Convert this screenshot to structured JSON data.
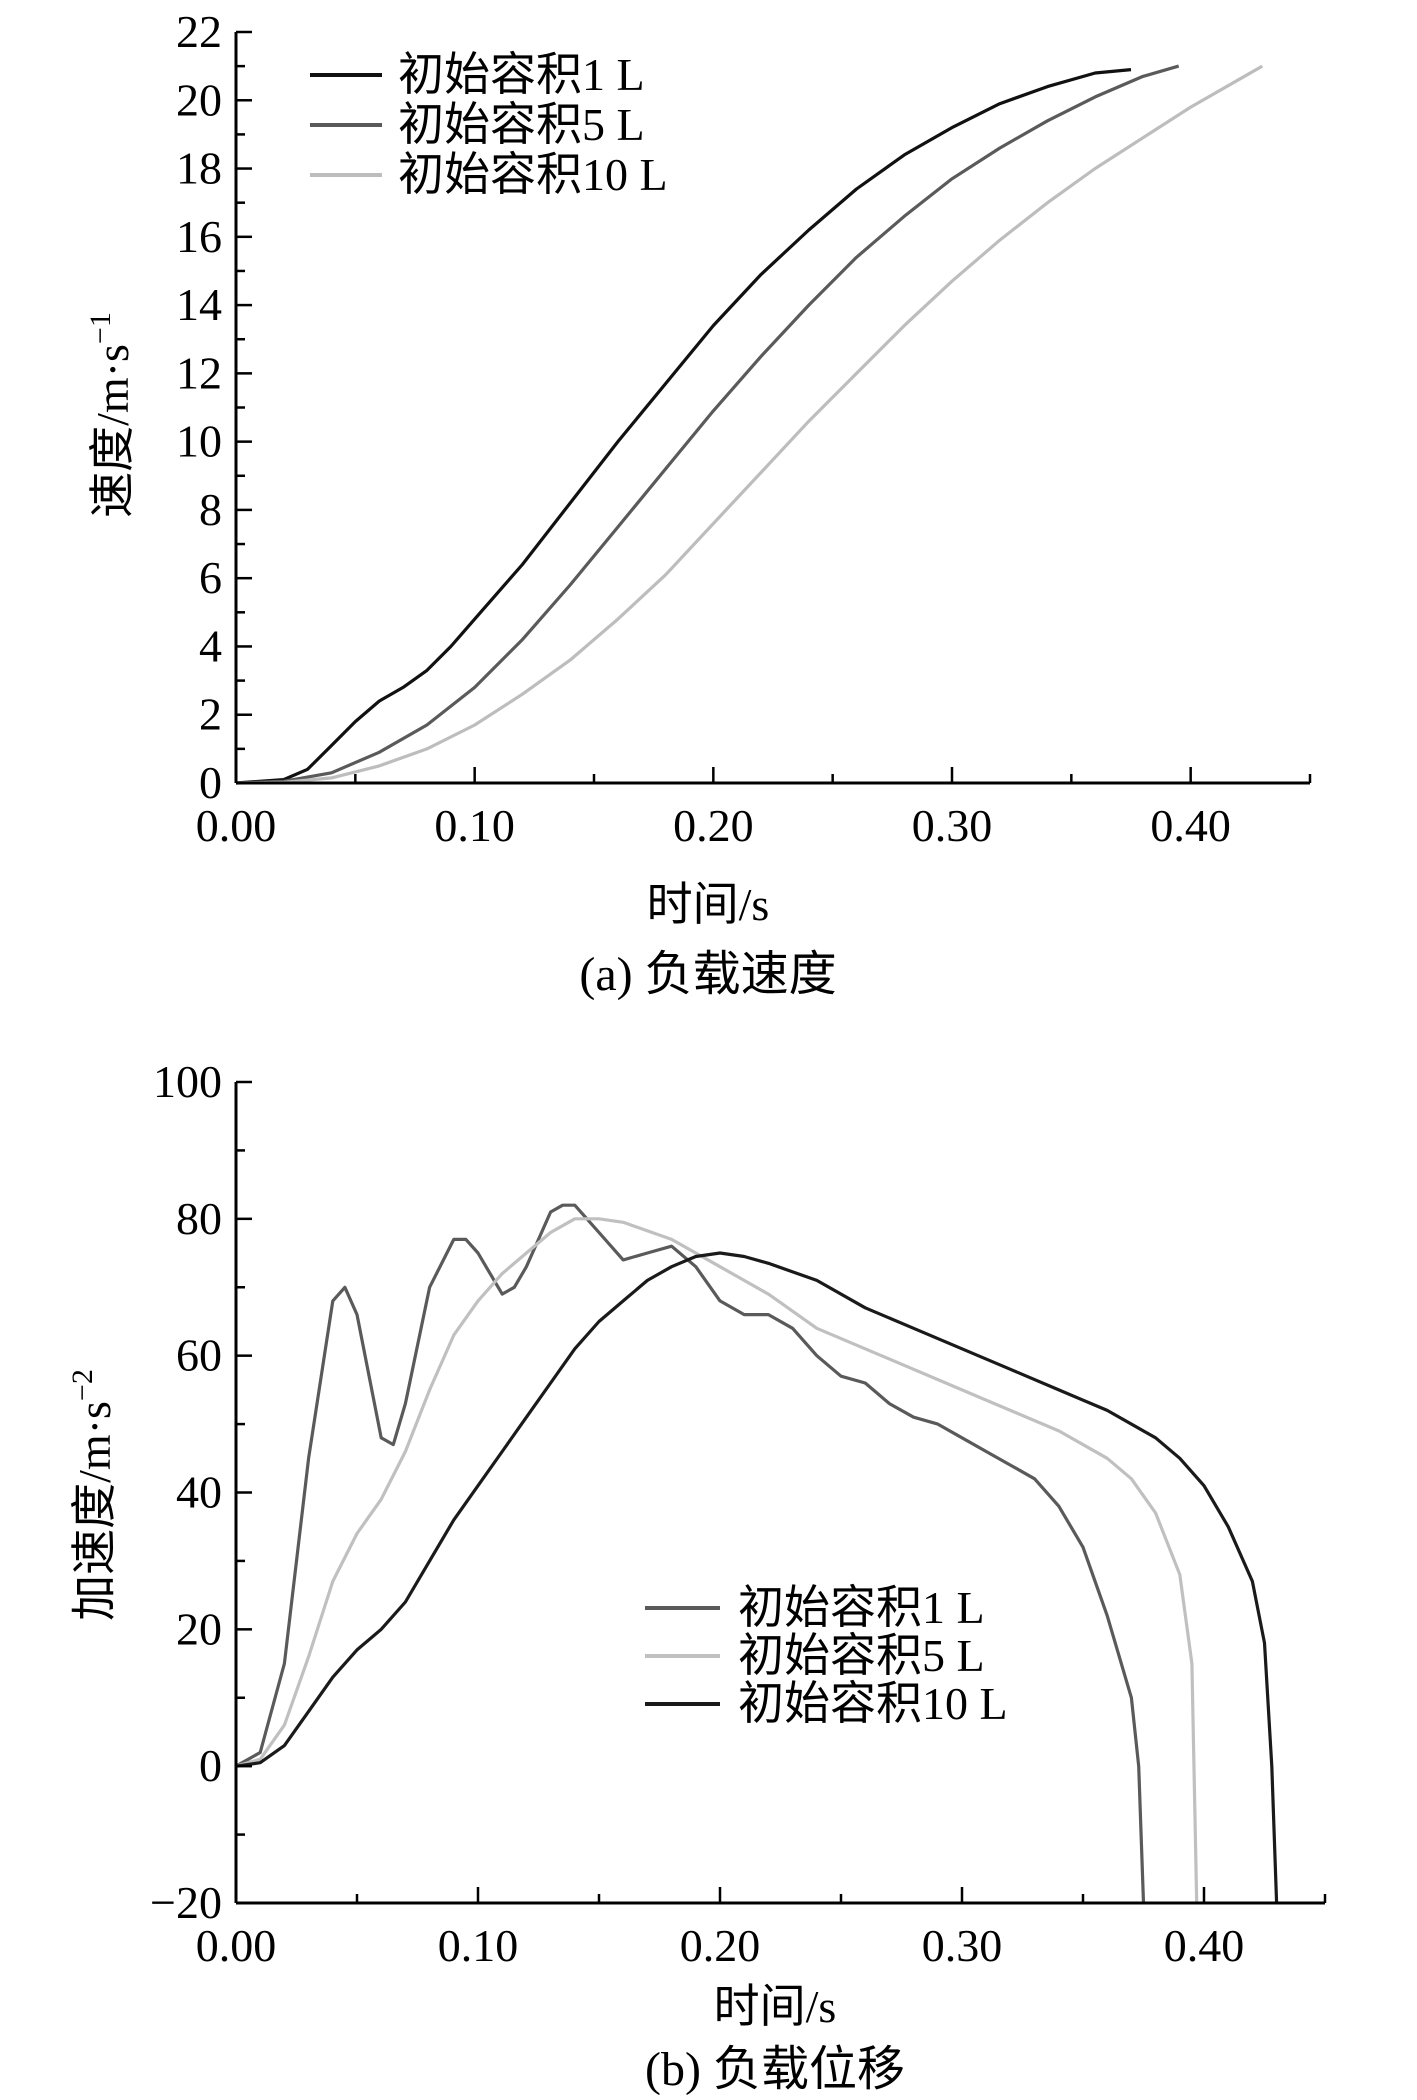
{
  "chart_data": [
    {
      "type": "line",
      "caption": "(a) 负载速度",
      "xlabel": "时间/s",
      "ylabel": "速度/m·s",
      "ylabel_sup": "−1",
      "xlim": [
        0,
        0.45
      ],
      "ylim": [
        0,
        22
      ],
      "xticks": [
        "0.00",
        "0.10",
        "0.20",
        "0.30",
        "0.40"
      ],
      "yticks": [
        "0",
        "2",
        "4",
        "6",
        "8",
        "10",
        "12",
        "14",
        "16",
        "18",
        "20",
        "22"
      ],
      "legend_position": "top-left",
      "series": [
        {
          "name": "初始容积1 L",
          "color": "#111111",
          "x": [
            0,
            0.02,
            0.03,
            0.04,
            0.05,
            0.06,
            0.07,
            0.08,
            0.09,
            0.1,
            0.12,
            0.14,
            0.16,
            0.18,
            0.2,
            0.22,
            0.24,
            0.26,
            0.28,
            0.3,
            0.32,
            0.34,
            0.36,
            0.375
          ],
          "y": [
            0,
            0.1,
            0.4,
            1.1,
            1.8,
            2.4,
            2.8,
            3.3,
            4.0,
            4.8,
            6.4,
            8.2,
            10.0,
            11.7,
            13.4,
            14.9,
            16.2,
            17.4,
            18.4,
            19.2,
            19.9,
            20.4,
            20.8,
            20.9
          ]
        },
        {
          "name": "初始容积5 L",
          "color": "#5a5a5a",
          "x": [
            0,
            0.02,
            0.04,
            0.06,
            0.08,
            0.1,
            0.12,
            0.14,
            0.16,
            0.18,
            0.2,
            0.22,
            0.24,
            0.26,
            0.28,
            0.3,
            0.32,
            0.34,
            0.36,
            0.38,
            0.395
          ],
          "y": [
            0,
            0.05,
            0.3,
            0.9,
            1.7,
            2.8,
            4.2,
            5.8,
            7.5,
            9.2,
            10.9,
            12.5,
            14.0,
            15.4,
            16.6,
            17.7,
            18.6,
            19.4,
            20.1,
            20.7,
            21.0
          ]
        },
        {
          "name": "初始容积10 L",
          "color": "#bdbdbd",
          "x": [
            0,
            0.02,
            0.04,
            0.06,
            0.08,
            0.1,
            0.12,
            0.14,
            0.16,
            0.18,
            0.2,
            0.22,
            0.24,
            0.26,
            0.28,
            0.3,
            0.32,
            0.34,
            0.36,
            0.38,
            0.4,
            0.42,
            0.43
          ],
          "y": [
            0,
            0.02,
            0.15,
            0.5,
            1.0,
            1.7,
            2.6,
            3.6,
            4.8,
            6.1,
            7.6,
            9.1,
            10.6,
            12.0,
            13.4,
            14.7,
            15.9,
            17.0,
            18.0,
            18.9,
            19.8,
            20.6,
            21.0
          ]
        }
      ]
    },
    {
      "type": "line",
      "caption": "(b) 负载位移",
      "xlabel": "时间/s",
      "ylabel": "加速度/m·s",
      "ylabel_sup": "−2",
      "xlim": [
        0,
        0.45
      ],
      "ylim": [
        -20,
        100
      ],
      "xticks": [
        "0.00",
        "0.10",
        "0.20",
        "0.30",
        "0.40"
      ],
      "yticks": [
        "−20",
        "0",
        "20",
        "40",
        "60",
        "80",
        "100"
      ],
      "legend_position": "center-right",
      "series": [
        {
          "name": "初始容积1 L",
          "color": "#5a5a5a",
          "x": [
            0,
            0.01,
            0.02,
            0.03,
            0.04,
            0.045,
            0.05,
            0.055,
            0.06,
            0.065,
            0.07,
            0.08,
            0.09,
            0.095,
            0.1,
            0.105,
            0.11,
            0.115,
            0.12,
            0.125,
            0.13,
            0.135,
            0.14,
            0.15,
            0.16,
            0.17,
            0.18,
            0.19,
            0.2,
            0.21,
            0.22,
            0.23,
            0.24,
            0.25,
            0.26,
            0.27,
            0.28,
            0.29,
            0.3,
            0.31,
            0.32,
            0.33,
            0.34,
            0.35,
            0.36,
            0.37,
            0.373,
            0.375
          ],
          "y": [
            0,
            2,
            15,
            45,
            68,
            70,
            66,
            57,
            48,
            47,
            53,
            70,
            77,
            77,
            75,
            72,
            69,
            70,
            73,
            77,
            81,
            82,
            82,
            78,
            74,
            75,
            76,
            73,
            68,
            66,
            66,
            64,
            60,
            57,
            56,
            53,
            51,
            50,
            48,
            46,
            44,
            42,
            38,
            32,
            22,
            10,
            0,
            -20
          ]
        },
        {
          "name": "初始容积5 L",
          "color": "#c0c0c0",
          "x": [
            0,
            0.01,
            0.02,
            0.03,
            0.04,
            0.05,
            0.06,
            0.07,
            0.08,
            0.09,
            0.1,
            0.11,
            0.12,
            0.13,
            0.14,
            0.15,
            0.16,
            0.18,
            0.2,
            0.22,
            0.24,
            0.26,
            0.28,
            0.3,
            0.32,
            0.34,
            0.36,
            0.37,
            0.38,
            0.39,
            0.395,
            0.397
          ],
          "y": [
            0,
            1,
            6,
            16,
            27,
            34,
            39,
            46,
            55,
            63,
            68,
            72,
            75,
            78,
            80,
            80,
            79.5,
            77,
            73,
            69,
            64,
            61,
            58,
            55,
            52,
            49,
            45,
            42,
            37,
            28,
            15,
            -20
          ]
        },
        {
          "name": "初始容积10 L",
          "color": "#1a1a1a",
          "x": [
            0,
            0.01,
            0.02,
            0.03,
            0.04,
            0.05,
            0.06,
            0.07,
            0.08,
            0.09,
            0.1,
            0.11,
            0.12,
            0.13,
            0.14,
            0.15,
            0.16,
            0.17,
            0.18,
            0.19,
            0.2,
            0.21,
            0.22,
            0.24,
            0.26,
            0.28,
            0.3,
            0.32,
            0.34,
            0.36,
            0.38,
            0.39,
            0.4,
            0.41,
            0.42,
            0.425,
            0.428,
            0.43
          ],
          "y": [
            0,
            0.5,
            3,
            8,
            13,
            17,
            20,
            24,
            30,
            36,
            41,
            46,
            51,
            56,
            61,
            65,
            68,
            71,
            73,
            74.5,
            75,
            74.5,
            73.5,
            71,
            67,
            64,
            61,
            58,
            55,
            52,
            48,
            45,
            41,
            35,
            27,
            18,
            0,
            -20
          ]
        }
      ]
    }
  ]
}
